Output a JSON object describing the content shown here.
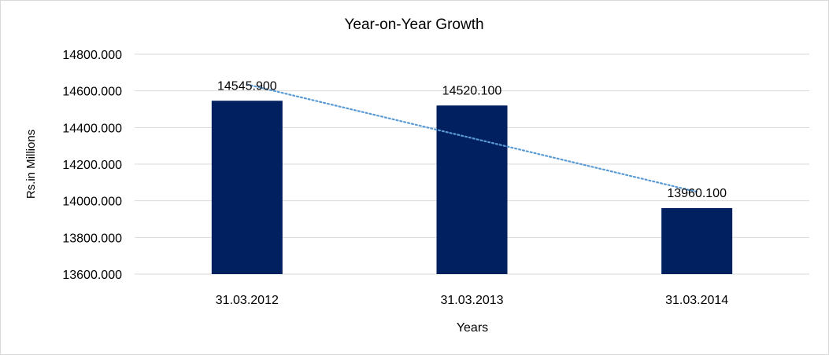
{
  "chart_data": {
    "type": "bar",
    "title": "Year-on-Year Growth",
    "xlabel": "Years",
    "ylabel": "Rs.in Millions",
    "categories": [
      "31.03.2012",
      "31.03.2013",
      "31.03.2014"
    ],
    "values": [
      14545.9,
      14520.1,
      13960.1
    ],
    "data_labels": [
      "14545.900",
      "14520.100",
      "13960.100"
    ],
    "ylim": [
      13600,
      14800
    ],
    "yticks": [
      13600,
      13800,
      14000,
      14200,
      14400,
      14600,
      14800
    ],
    "ytick_labels": [
      "13600.000",
      "13800.000",
      "14000.000",
      "14200.000",
      "14400.000",
      "14600.000",
      "14800.000"
    ],
    "grid": true,
    "legend": "none",
    "trendline": {
      "type": "linear",
      "style": "dotted",
      "color": "#5b9bd5"
    },
    "bar_color": "#002060"
  }
}
